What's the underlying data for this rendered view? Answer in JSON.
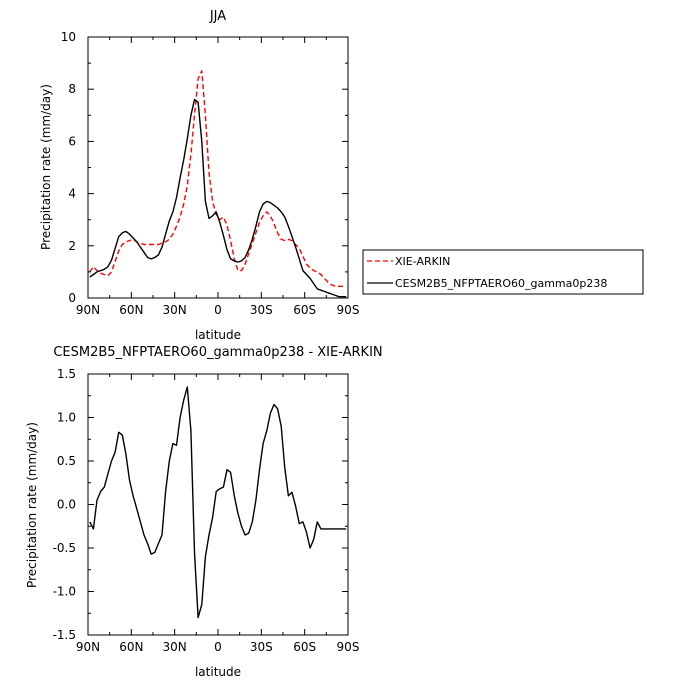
{
  "chart_data": [
    {
      "type": "line",
      "title": "JJA",
      "xlabel": "latitude",
      "ylabel": "Precipitation rate (mm/day)",
      "xlim": [
        90,
        -90
      ],
      "ylim": [
        0,
        10
      ],
      "xticks": [
        90,
        60,
        30,
        0,
        -30,
        -60,
        -90
      ],
      "xticklabels": [
        "90N",
        "60N",
        "30N",
        "0",
        "30S",
        "60S",
        "90S"
      ],
      "yticks": [
        0,
        2,
        4,
        6,
        8,
        10
      ],
      "yticklabels": [
        "0",
        "2",
        "4",
        "6",
        "8",
        "10"
      ],
      "legend_position": "right",
      "grid": false,
      "series": [
        {
          "name": "XIE-ARKIN",
          "color": "#ff0000",
          "dash": "dashed",
          "x": [
            88.75,
            86.25,
            83.75,
            81.25,
            78.75,
            76.25,
            73.75,
            71.25,
            68.75,
            66.25,
            63.75,
            61.25,
            58.75,
            56.25,
            53.75,
            51.25,
            48.75,
            46.25,
            43.75,
            41.25,
            38.75,
            36.25,
            33.75,
            31.25,
            28.75,
            26.25,
            23.75,
            21.25,
            18.75,
            16.25,
            13.75,
            11.25,
            8.75,
            6.25,
            3.75,
            1.25,
            -1.25,
            -3.75,
            -6.25,
            -8.75,
            -11.25,
            -13.75,
            -16.25,
            -18.75,
            -21.25,
            -23.75,
            -26.25,
            -28.75,
            -31.25,
            -33.75,
            -36.25,
            -38.75,
            -41.25,
            -43.75,
            -46.25,
            -48.75,
            -51.25,
            -53.75,
            -56.25,
            -58.75,
            -61.25,
            -63.75,
            -66.25,
            -68.75,
            -71.25,
            -73.75,
            -76.25,
            -78.75,
            -81.25,
            -83.75,
            -86.25,
            -88.75
          ],
          "y": [
            1.0,
            1.2,
            1.05,
            0.95,
            0.9,
            0.85,
            1.0,
            1.4,
            1.8,
            2.05,
            2.15,
            2.2,
            2.25,
            2.15,
            2.1,
            2.05,
            2.05,
            2.05,
            2.05,
            2.05,
            2.1,
            2.15,
            2.25,
            2.45,
            2.75,
            3.1,
            3.6,
            4.3,
            5.5,
            7.0,
            8.4,
            8.7,
            7.0,
            4.8,
            3.7,
            3.2,
            3.0,
            3.1,
            2.8,
            2.2,
            1.5,
            1.05,
            1.05,
            1.3,
            1.7,
            2.1,
            2.5,
            2.9,
            3.15,
            3.3,
            3.15,
            2.85,
            2.5,
            2.25,
            2.2,
            2.25,
            2.2,
            2.05,
            1.9,
            1.6,
            1.3,
            1.15,
            1.05,
            1.0,
            0.9,
            0.75,
            0.6,
            0.5,
            0.45,
            0.45,
            0.45,
            0.45
          ]
        },
        {
          "name": "CESM2B5_NFPTAERO60_gamma0p238",
          "color": "#000000",
          "dash": "solid",
          "x": [
            88.75,
            86.25,
            83.75,
            81.25,
            78.75,
            76.25,
            73.75,
            71.25,
            68.75,
            66.25,
            63.75,
            61.25,
            58.75,
            56.25,
            53.75,
            51.25,
            48.75,
            46.25,
            43.75,
            41.25,
            38.75,
            36.25,
            33.75,
            31.25,
            28.75,
            26.25,
            23.75,
            21.25,
            18.75,
            16.25,
            13.75,
            11.25,
            8.75,
            6.25,
            3.75,
            1.25,
            -1.25,
            -3.75,
            -6.25,
            -8.75,
            -11.25,
            -13.75,
            -16.25,
            -18.75,
            -21.25,
            -23.75,
            -26.25,
            -28.75,
            -31.25,
            -33.75,
            -36.25,
            -38.75,
            -41.25,
            -43.75,
            -46.25,
            -48.75,
            -51.25,
            -53.75,
            -56.25,
            -58.75,
            -61.25,
            -63.75,
            -66.25,
            -68.75,
            -71.25,
            -73.75,
            -76.25,
            -78.75,
            -81.25,
            -83.75,
            -86.25,
            -88.75
          ],
          "y": [
            0.8,
            0.9,
            1.0,
            1.05,
            1.1,
            1.2,
            1.45,
            1.9,
            2.35,
            2.5,
            2.55,
            2.45,
            2.3,
            2.15,
            1.95,
            1.75,
            1.55,
            1.5,
            1.55,
            1.65,
            1.95,
            2.45,
            2.95,
            3.3,
            3.85,
            4.6,
            5.3,
            6.1,
            7.0,
            7.6,
            7.5,
            6.0,
            3.7,
            3.05,
            3.15,
            3.3,
            2.9,
            2.4,
            1.85,
            1.5,
            1.42,
            1.38,
            1.42,
            1.55,
            1.85,
            2.25,
            2.75,
            3.3,
            3.6,
            3.7,
            3.65,
            3.55,
            3.45,
            3.3,
            3.1,
            2.75,
            2.35,
            1.95,
            1.5,
            1.05,
            0.9,
            0.75,
            0.55,
            0.35,
            0.3,
            0.25,
            0.2,
            0.15,
            0.1,
            0.05,
            0.05,
            0.05
          ]
        }
      ]
    },
    {
      "type": "line",
      "title": "CESM2B5_NFPTAERO60_gamma0p238 - XIE-ARKIN",
      "xlabel": "latitude",
      "ylabel": "Precipitation rate (mm/day)",
      "xlim": [
        90,
        -90
      ],
      "ylim": [
        -1.5,
        1.5
      ],
      "xticks": [
        90,
        60,
        30,
        0,
        -30,
        -60,
        -90
      ],
      "xticklabels": [
        "90N",
        "60N",
        "30N",
        "0",
        "30S",
        "60S",
        "90S"
      ],
      "yticks": [
        -1.5,
        -1.0,
        -0.5,
        0.0,
        0.5,
        1.0,
        1.5
      ],
      "yticklabels": [
        "-1.5",
        "-1.0",
        "-0.5",
        "0.0",
        "0.5",
        "1.0",
        "1.5"
      ],
      "grid": false,
      "series": [
        {
          "color": "#000000",
          "dash": "solid",
          "x": [
            88.75,
            86.25,
            83.75,
            81.25,
            78.75,
            76.25,
            73.75,
            71.25,
            68.75,
            66.25,
            63.75,
            61.25,
            58.75,
            56.25,
            53.75,
            51.25,
            48.75,
            46.25,
            43.75,
            41.25,
            38.75,
            36.25,
            33.75,
            31.25,
            28.75,
            26.25,
            23.75,
            21.25,
            18.75,
            16.25,
            13.75,
            11.25,
            8.75,
            6.25,
            3.75,
            1.25,
            -1.25,
            -3.75,
            -6.25,
            -8.75,
            -11.25,
            -13.75,
            -16.25,
            -18.75,
            -21.25,
            -23.75,
            -26.25,
            -28.75,
            -31.25,
            -33.75,
            -36.25,
            -38.75,
            -41.25,
            -43.75,
            -46.25,
            -48.75,
            -51.25,
            -53.75,
            -56.25,
            -58.75,
            -61.25,
            -63.75,
            -66.25,
            -68.75,
            -71.25,
            -73.75,
            -76.25,
            -78.75,
            -81.25,
            -83.75,
            -86.25,
            -88.75
          ],
          "y": [
            -0.2,
            -0.28,
            0.05,
            0.15,
            0.2,
            0.35,
            0.5,
            0.6,
            0.83,
            0.8,
            0.58,
            0.28,
            0.1,
            -0.05,
            -0.2,
            -0.35,
            -0.45,
            -0.57,
            -0.55,
            -0.45,
            -0.35,
            0.15,
            0.5,
            0.7,
            0.68,
            1.0,
            1.2,
            1.35,
            0.85,
            -0.55,
            -1.3,
            -1.15,
            -0.6,
            -0.35,
            -0.15,
            0.15,
            0.18,
            0.2,
            0.4,
            0.37,
            0.1,
            -0.1,
            -0.25,
            -0.35,
            -0.33,
            -0.2,
            0.05,
            0.4,
            0.7,
            0.85,
            1.05,
            1.15,
            1.1,
            0.9,
            0.42,
            0.1,
            0.14,
            -0.02,
            -0.22,
            -0.2,
            -0.32,
            -0.5,
            -0.4,
            -0.2,
            -0.28,
            -0.28,
            -0.28,
            -0.28,
            -0.28,
            -0.28,
            -0.28,
            -0.28
          ]
        }
      ]
    }
  ]
}
